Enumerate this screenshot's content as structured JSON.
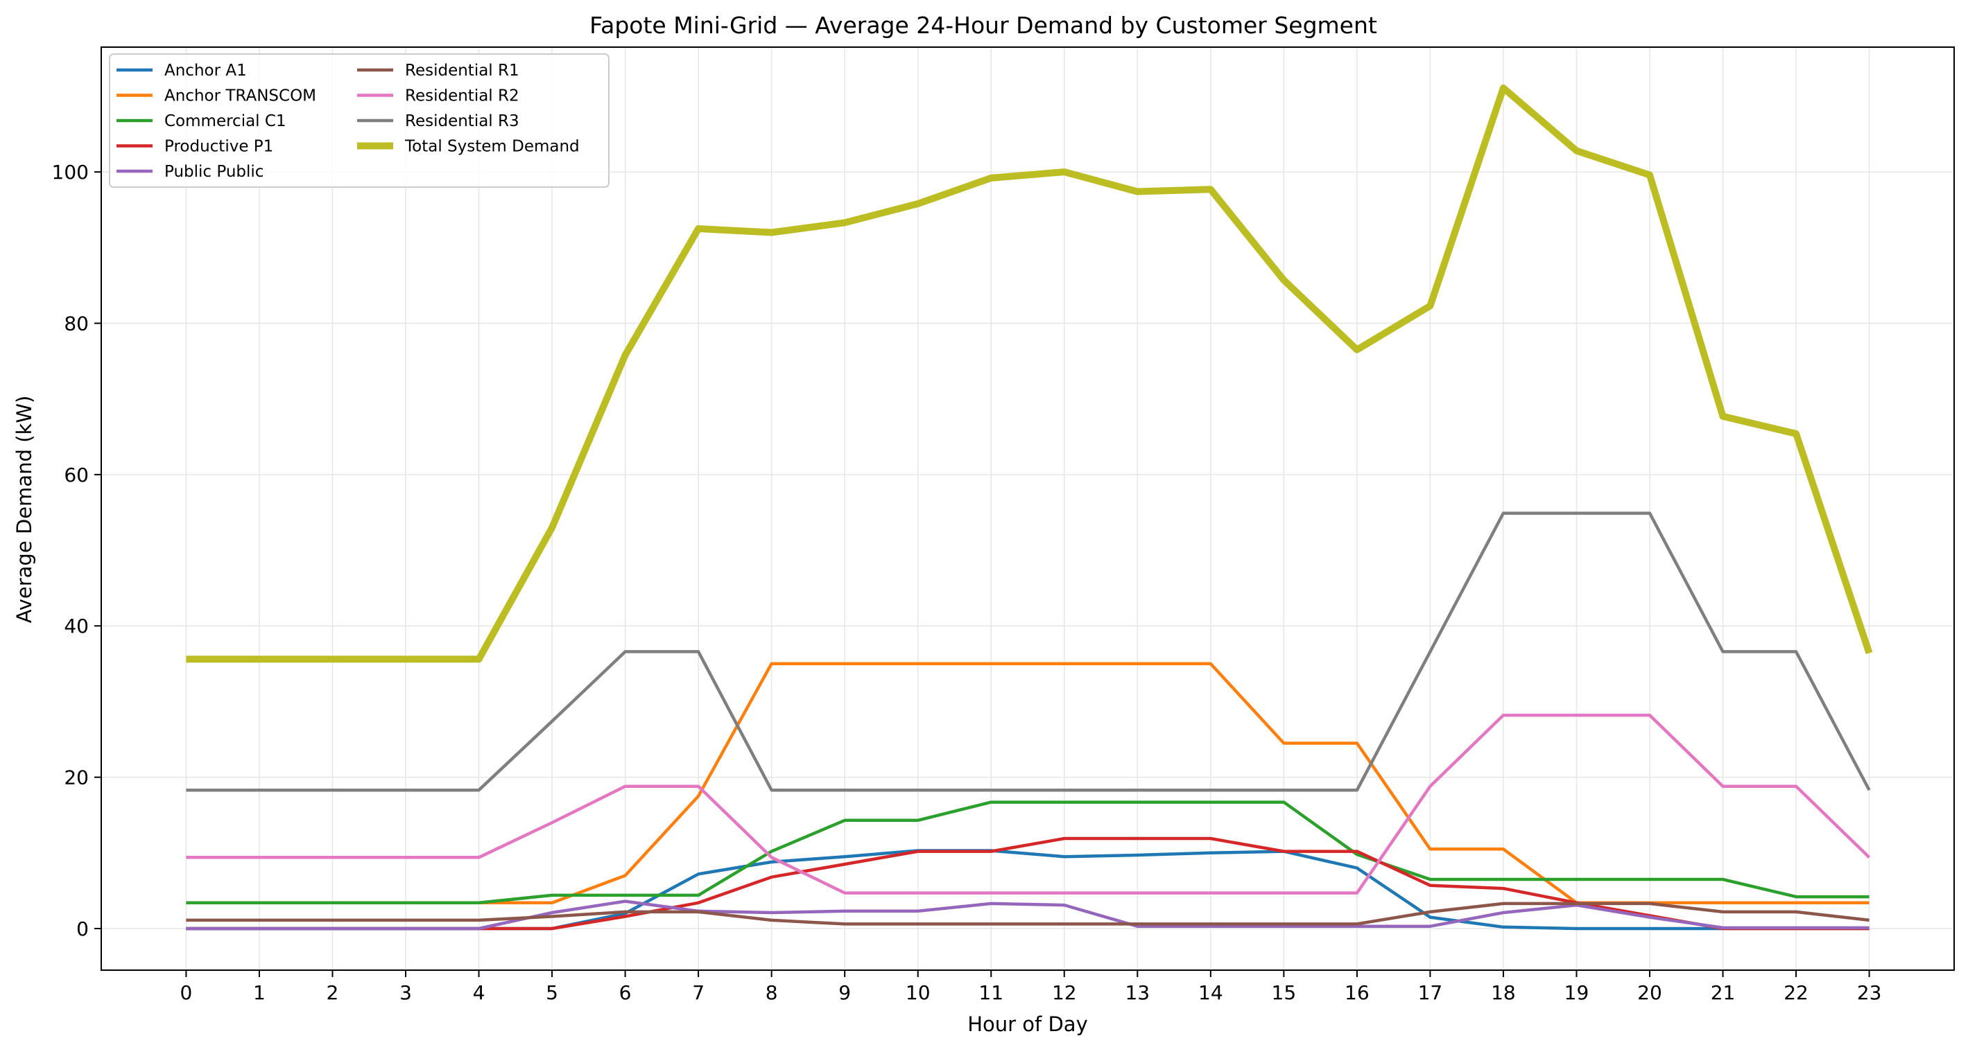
{
  "chart_data": {
    "type": "line",
    "title": "Fapote Mini-Grid — Average 24-Hour Demand by Customer Segment",
    "xlabel": "Hour of Day",
    "ylabel": "Average Demand (kW)",
    "xlim": [
      -1.16,
      24.16
    ],
    "ylim": [
      -5.5,
      116.5
    ],
    "grid": true,
    "legend_position": "top-left",
    "x": [
      0,
      1,
      2,
      3,
      4,
      5,
      6,
      7,
      8,
      9,
      10,
      11,
      12,
      13,
      14,
      15,
      16,
      17,
      18,
      19,
      20,
      21,
      22,
      23
    ],
    "x_ticks": [
      "0",
      "1",
      "2",
      "3",
      "4",
      "5",
      "6",
      "7",
      "8",
      "9",
      "10",
      "11",
      "12",
      "13",
      "14",
      "15",
      "16",
      "17",
      "18",
      "19",
      "20",
      "21",
      "22",
      "23"
    ],
    "y_ticks": [
      0,
      20,
      40,
      60,
      80,
      100
    ],
    "series": [
      {
        "name": "Anchor A1",
        "color": "#1f77b4",
        "width": 4.5,
        "values": [
          0,
          0,
          0,
          0,
          0,
          0,
          2,
          7.2,
          8.8,
          9.5,
          10.3,
          10.3,
          9.5,
          9.7,
          10.0,
          10.2,
          8.0,
          1.5,
          0.2,
          0,
          0,
          0,
          0,
          0
        ]
      },
      {
        "name": "Anchor TRANSCOM",
        "color": "#ff7f0e",
        "width": 4.5,
        "values": [
          3.4,
          3.4,
          3.4,
          3.4,
          3.4,
          3.4,
          7.0,
          17.5,
          35.0,
          35.0,
          35.0,
          35.0,
          35.0,
          35.0,
          35.0,
          24.5,
          24.5,
          10.5,
          10.5,
          3.4,
          3.4,
          3.4,
          3.4,
          3.4
        ]
      },
      {
        "name": "Commercial C1",
        "color": "#2ca02c",
        "width": 4.5,
        "values": [
          3.4,
          3.4,
          3.4,
          3.4,
          3.4,
          4.4,
          4.4,
          4.4,
          10.2,
          14.3,
          14.3,
          16.7,
          16.7,
          16.7,
          16.7,
          16.7,
          9.8,
          6.5,
          6.5,
          6.5,
          6.5,
          6.5,
          4.2,
          4.2
        ]
      },
      {
        "name": "Productive P1",
        "color": "#d62728",
        "width": 4.5,
        "values": [
          0,
          0,
          0,
          0,
          0,
          0,
          1.6,
          3.4,
          6.8,
          8.5,
          10.2,
          10.2,
          11.9,
          11.9,
          11.9,
          10.2,
          10.2,
          5.7,
          5.3,
          3.4,
          1.7,
          0,
          0,
          0
        ]
      },
      {
        "name": "Public Public",
        "color": "#9467bd",
        "width": 4.5,
        "values": [
          0,
          0,
          0,
          0,
          0,
          2.1,
          3.6,
          2.3,
          2.1,
          2.3,
          2.3,
          3.3,
          3.1,
          0.3,
          0.3,
          0.3,
          0.3,
          0.3,
          2.1,
          3.1,
          1.5,
          0.1,
          0.1,
          0.1
        ]
      },
      {
        "name": "Residential R1",
        "color": "#8c564b",
        "width": 4.5,
        "values": [
          1.1,
          1.1,
          1.1,
          1.1,
          1.1,
          1.6,
          2.2,
          2.2,
          1.1,
          0.6,
          0.6,
          0.6,
          0.6,
          0.6,
          0.6,
          0.6,
          0.6,
          2.2,
          3.3,
          3.3,
          3.3,
          2.2,
          2.2,
          1.1
        ]
      },
      {
        "name": "Residential R2",
        "color": "#e377c2",
        "width": 4.5,
        "values": [
          9.4,
          9.4,
          9.4,
          9.4,
          9.4,
          14.0,
          18.8,
          18.8,
          9.4,
          4.7,
          4.7,
          4.7,
          4.7,
          4.7,
          4.7,
          4.7,
          4.7,
          18.8,
          28.2,
          28.2,
          28.2,
          18.8,
          18.8,
          9.4
        ]
      },
      {
        "name": "Residential R3",
        "color": "#7f7f7f",
        "width": 4.5,
        "values": [
          18.3,
          18.3,
          18.3,
          18.3,
          18.3,
          27.4,
          36.6,
          36.6,
          18.3,
          18.3,
          18.3,
          18.3,
          18.3,
          18.3,
          18.3,
          18.3,
          18.3,
          36.6,
          54.9,
          54.9,
          54.9,
          36.6,
          36.6,
          18.3
        ]
      },
      {
        "name": "Total System Demand",
        "color": "#bcbd22",
        "width": 10,
        "values": [
          35.6,
          35.6,
          35.6,
          35.6,
          35.6,
          53.0,
          75.8,
          92.5,
          92.0,
          93.3,
          95.8,
          99.2,
          100.0,
          97.4,
          97.7,
          85.7,
          76.5,
          82.3,
          111.1,
          102.8,
          99.6,
          67.7,
          65.4,
          36.4
        ]
      }
    ]
  }
}
